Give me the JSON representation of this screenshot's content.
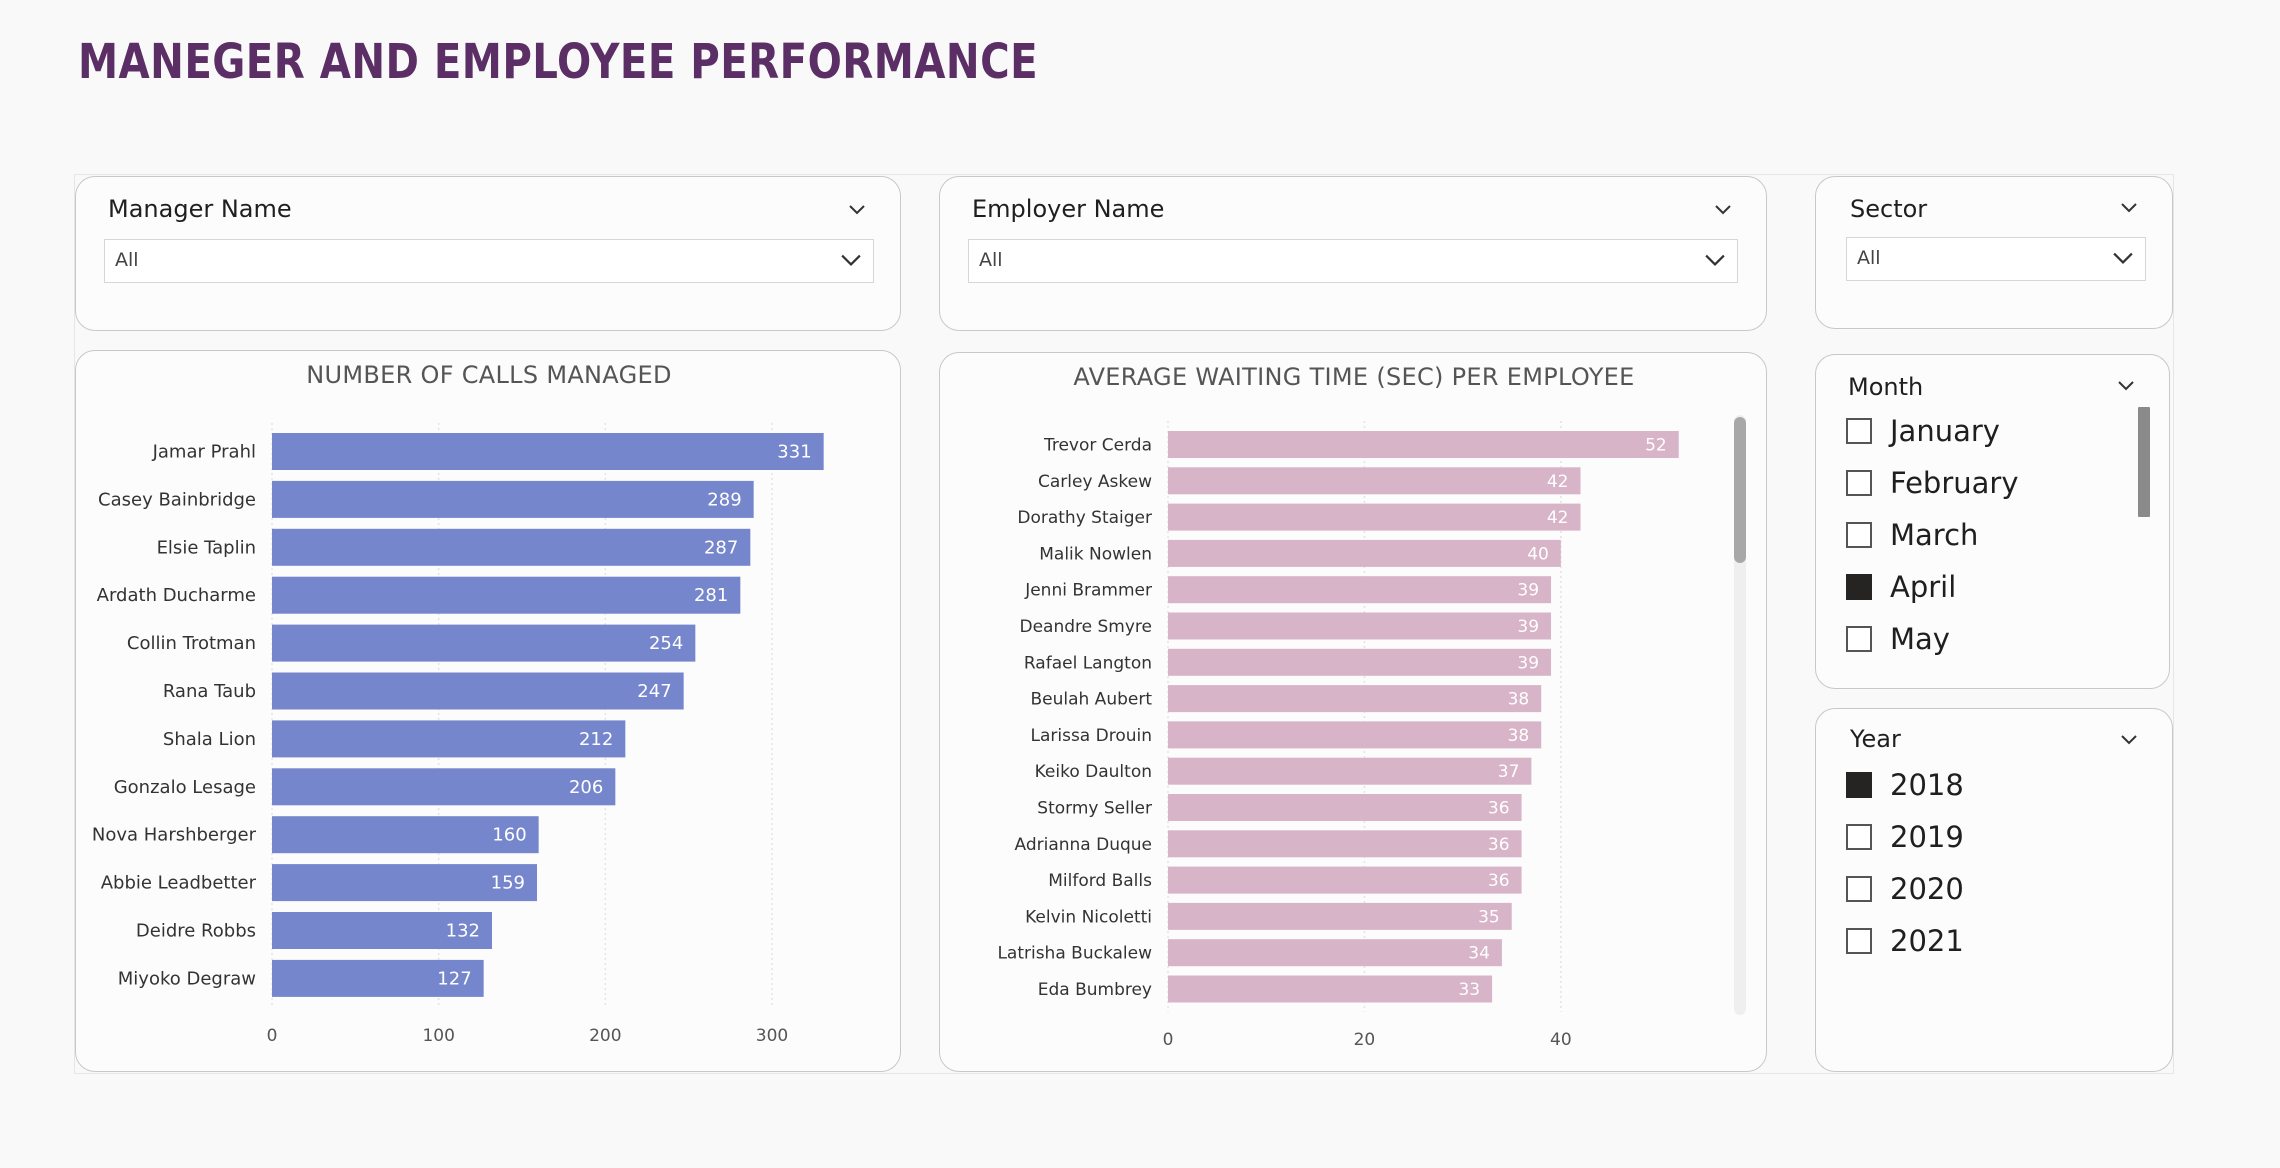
{
  "page": {
    "title": "MANEGER AND EMPLOYEE PERFORMANCE"
  },
  "filters": {
    "manager": {
      "title": "Manager Name",
      "value": "All"
    },
    "employer": {
      "title": "Employer Name",
      "value": "All"
    },
    "sector": {
      "title": "Sector",
      "value": "All"
    },
    "month": {
      "title": "Month",
      "items": [
        {
          "label": "January",
          "checked": false
        },
        {
          "label": "February",
          "checked": false
        },
        {
          "label": "March",
          "checked": false
        },
        {
          "label": "April",
          "checked": true
        },
        {
          "label": "May",
          "checked": false
        }
      ]
    },
    "year": {
      "title": "Year",
      "items": [
        {
          "label": "2018",
          "checked": true
        },
        {
          "label": "2019",
          "checked": false
        },
        {
          "label": "2020",
          "checked": false
        },
        {
          "label": "2021",
          "checked": false
        }
      ]
    }
  },
  "colors": {
    "title": "#5b2f66",
    "calls_bar": "#7586cc",
    "wait_bar": "#d8b4c8"
  },
  "chart_data": [
    {
      "type": "bar",
      "orientation": "horizontal",
      "title": "NUMBER OF CALLS MANAGED",
      "categories": [
        "Jamar Prahl",
        "Casey Bainbridge",
        "Elsie Taplin",
        "Ardath Ducharme",
        "Collin Trotman",
        "Rana Taub",
        "Shala Lion",
        "Gonzalo Lesage",
        "Nova Harshberger",
        "Abbie Leadbetter",
        "Deidre Robbs",
        "Miyoko Degraw"
      ],
      "values": [
        331,
        289,
        287,
        281,
        254,
        247,
        212,
        206,
        160,
        159,
        132,
        127
      ],
      "xlim": [
        0,
        360
      ],
      "xticks": [
        0,
        100,
        200,
        300
      ],
      "grid": true,
      "data_labels": true
    },
    {
      "type": "bar",
      "orientation": "horizontal",
      "title": "AVERAGE WAITING TIME (SEC) PER EMPLOYEE",
      "categories": [
        "Trevor Cerda",
        "Carley Askew",
        "Dorathy Staiger",
        "Malik Nowlen",
        "Jenni Brammer",
        "Deandre Smyre",
        "Rafael Langton",
        "Beulah Aubert",
        "Larissa Drouin",
        "Keiko Daulton",
        "Stormy Seller",
        "Adrianna Duque",
        "Milford Balls",
        "Kelvin Nicoletti",
        "Latrisha Buckalew",
        "Eda Bumbrey"
      ],
      "values": [
        52,
        42,
        42,
        40,
        39,
        39,
        39,
        38,
        38,
        37,
        36,
        36,
        36,
        35,
        34,
        33
      ],
      "xlim": [
        0,
        56
      ],
      "xticks": [
        0,
        20,
        40
      ],
      "grid": true,
      "data_labels": true
    }
  ]
}
